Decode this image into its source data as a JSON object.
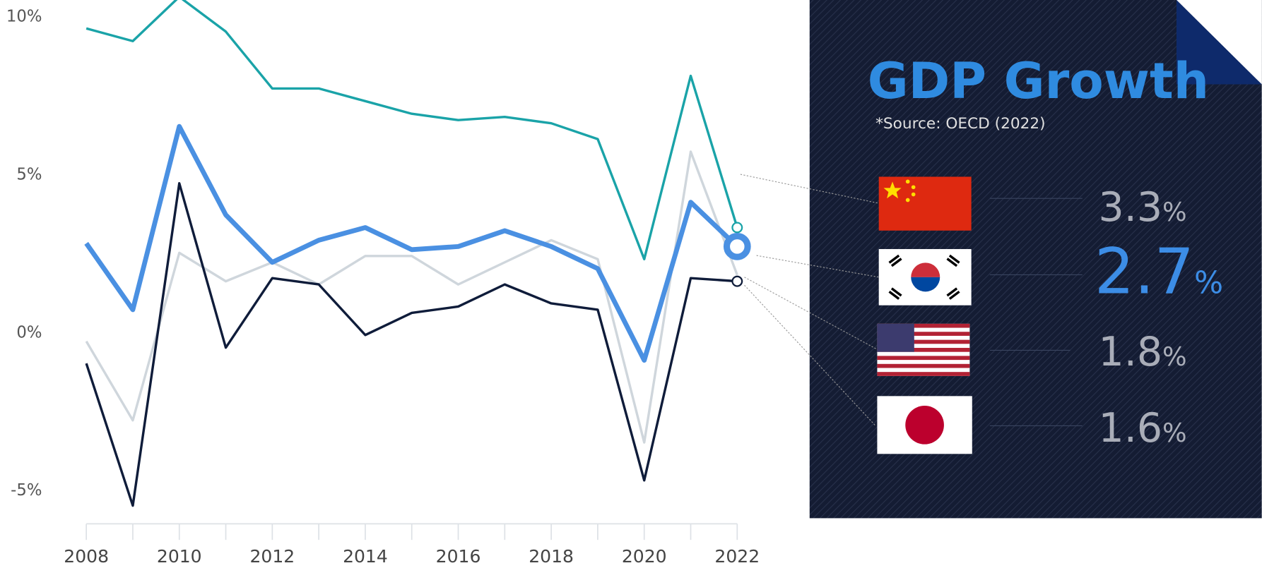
{
  "chart_data": {
    "type": "line",
    "title": "GDP Growth",
    "subtitle": "*Source: OECD (2022)",
    "x": [
      2008,
      2009,
      2010,
      2011,
      2012,
      2013,
      2014,
      2015,
      2016,
      2017,
      2018,
      2019,
      2020,
      2021,
      2022
    ],
    "xlim": [
      2008,
      2022
    ],
    "xticks": [
      2008,
      2010,
      2012,
      2014,
      2016,
      2018,
      2020,
      2022
    ],
    "xminor_ticks": [
      2009,
      2011,
      2013,
      2015,
      2017,
      2019,
      2021
    ],
    "ylim": [
      -6.1,
      10.5
    ],
    "yticks": [
      {
        "value": -5,
        "label": "-5%"
      },
      {
        "value": 0,
        "label": "0%"
      },
      {
        "value": 5,
        "label": "5%"
      },
      {
        "value": 10,
        "label": "10%"
      }
    ],
    "grid": false,
    "series": [
      {
        "color": "#1aa3a8",
        "width": 3,
        "marker": "small",
        "values": [
          9.6,
          9.2,
          10.6,
          9.5,
          7.7,
          7.7,
          7.3,
          6.9,
          6.7,
          6.8,
          6.6,
          6.1,
          2.3,
          8.1,
          3.3
        ]
      },
      {
        "color": "#cfd6dc",
        "width": 3,
        "marker": "none",
        "values": [
          -0.3,
          -2.8,
          2.5,
          1.6,
          2.2,
          1.5,
          2.4,
          2.4,
          1.5,
          2.2,
          2.9,
          2.3,
          -3.5,
          5.7,
          1.8
        ]
      },
      {
        "color": "#0f1c3a",
        "width": 3,
        "marker": "small",
        "values": [
          -1.0,
          -5.5,
          4.7,
          -0.5,
          1.7,
          1.5,
          -0.1,
          0.6,
          0.8,
          1.5,
          0.9,
          0.7,
          -4.7,
          1.7,
          1.6
        ]
      },
      {
        "color": "#4a90e2",
        "width": 6,
        "marker": "large",
        "values": [
          2.8,
          0.7,
          6.5,
          3.7,
          2.2,
          2.9,
          3.3,
          2.6,
          2.7,
          3.2,
          2.7,
          2.0,
          -0.9,
          4.1,
          2.7
        ]
      }
    ],
    "callouts": [
      {
        "text": "3.3",
        "unit": "%"
      },
      {
        "text": "2.7",
        "unit": "%"
      },
      {
        "text": "1.8",
        "unit": "%"
      },
      {
        "text": "1.6",
        "unit": "%"
      }
    ]
  }
}
